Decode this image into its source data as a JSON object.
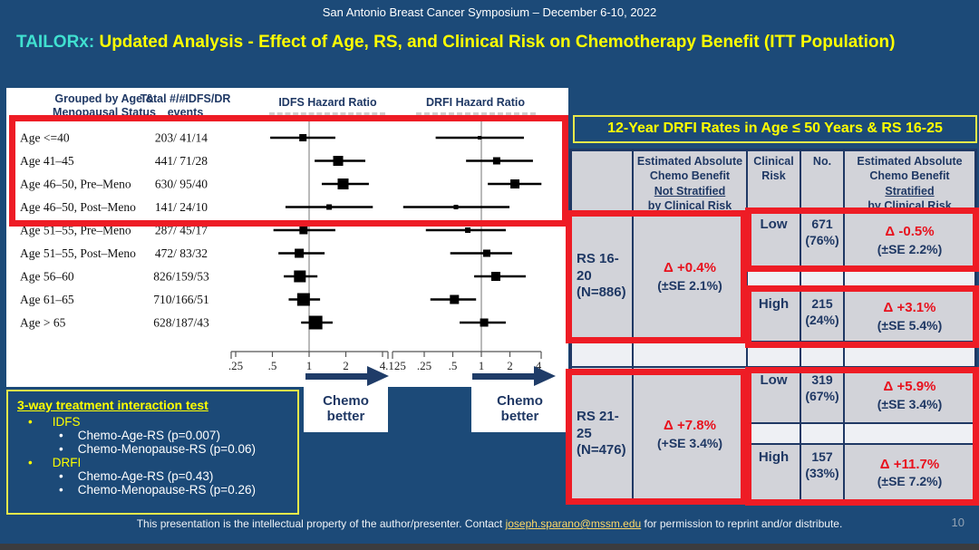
{
  "slide": {
    "conference": "San Antonio Breast Cancer Symposium – December 6-10, 2022",
    "title_prefix": "TAILORx:",
    "title_rest": " Updated Analysis - Effect of Age, RS, and Clinical Risk on Chemotherapy Benefit (ITT Population)",
    "chemo_better_line1": "Chemo",
    "chemo_better_line2": "better",
    "footer_pre": "This presentation is the intellectual property of the author/presenter. Contact ",
    "footer_email": "joseph.sparano@mssm.edu",
    "footer_post": " for permission to reprint and/or distribute.",
    "page_number": "10"
  },
  "forest_panel": {
    "col1_header_line1": "Grouped by Age &",
    "col1_header_line2": "Menopausal Status",
    "col2_header_line1": "Total #/#IDFS/DR",
    "col2_header_line2": "events",
    "idfs_header": "IDFS Hazard Ratio",
    "drfi_header": "DRFI  Hazard Ratio"
  },
  "chart_data": {
    "type": "forest",
    "scale": "log",
    "idfs_axis_ticks": [
      ".25",
      ".5",
      "1",
      "2",
      "4"
    ],
    "drfi_axis_ticks": [
      ".125",
      ".25",
      ".5",
      "1",
      "2",
      "4"
    ],
    "arrow_label": "Chemo better",
    "rows": [
      {
        "label": "Age <=40",
        "events": "203/ 41/14",
        "idfs": {
          "hr": 0.89,
          "lo": 0.48,
          "hi": 1.64,
          "size": 8
        },
        "drfi": {
          "hr": 0.96,
          "lo": 0.33,
          "hi": 2.81,
          "size": 4
        }
      },
      {
        "label": "Age 41–45",
        "events": "441/ 71/28",
        "idfs": {
          "hr": 1.73,
          "lo": 1.11,
          "hi": 2.89,
          "size": 11
        },
        "drfi": {
          "hr": 1.45,
          "lo": 0.69,
          "hi": 3.5,
          "size": 8
        }
      },
      {
        "label": "Age 46–50, Pre–Meno",
        "events": "630/ 95/40",
        "idfs": {
          "hr": 1.9,
          "lo": 1.27,
          "hi": 3.09,
          "size": 12
        },
        "drfi": {
          "hr": 2.26,
          "lo": 1.17,
          "hi": 4.3,
          "size": 10
        }
      },
      {
        "label": "Age 46–50, Post–Meno",
        "events": "141/ 24/10",
        "idfs": {
          "hr": 1.46,
          "lo": 0.64,
          "hi": 3.33,
          "size": 6
        },
        "drfi": {
          "hr": 0.54,
          "lo": 0.15,
          "hi": 1.98,
          "size": 5
        }
      },
      {
        "label": "Age 51–55, Pre–Meno",
        "events": "287/ 45/17",
        "idfs": {
          "hr": 0.9,
          "lo": 0.51,
          "hi": 1.64,
          "size": 9
        },
        "drfi": {
          "hr": 0.72,
          "lo": 0.26,
          "hi": 1.81,
          "size": 6
        }
      },
      {
        "label": "Age 51–55, Post–Meno",
        "events": "472/ 83/32",
        "idfs": {
          "hr": 0.83,
          "lo": 0.56,
          "hi": 1.34,
          "size": 10
        },
        "drfi": {
          "hr": 1.14,
          "lo": 0.47,
          "hi": 2.11,
          "size": 8
        }
      },
      {
        "label": "Age 56–60",
        "events": "826/159/53",
        "idfs": {
          "hr": 0.84,
          "lo": 0.62,
          "hi": 1.17,
          "size": 13
        },
        "drfi": {
          "hr": 1.42,
          "lo": 0.84,
          "hi": 2.94,
          "size": 10
        }
      },
      {
        "label": "Age 61–65",
        "events": "710/166/51",
        "idfs": {
          "hr": 0.9,
          "lo": 0.68,
          "hi": 1.23,
          "size": 14
        },
        "drfi": {
          "hr": 0.52,
          "lo": 0.29,
          "hi": 0.88,
          "size": 10
        }
      },
      {
        "label": "Age > 65",
        "events": "628/187/43",
        "idfs": {
          "hr": 1.13,
          "lo": 0.86,
          "hi": 1.56,
          "size": 15
        },
        "drfi": {
          "hr": 1.07,
          "lo": 0.59,
          "hi": 1.81,
          "size": 9
        }
      }
    ]
  },
  "interaction_box": {
    "title": "3-way treatment interaction test",
    "groups": [
      {
        "name": "IDFS",
        "items": [
          "Chemo-Age-RS (p=0.007)",
          "Chemo-Menopause-RS (p=0.06)"
        ]
      },
      {
        "name": "DRFI",
        "items": [
          "Chemo-Age-RS (p=0.43)",
          "Chemo-Menopause-RS (p=0.26)"
        ]
      }
    ]
  },
  "drfi_table": {
    "title": "12-Year DRFI Rates in Age ≤ 50 Years  & RS 16-25",
    "headers": {
      "col2_lines": [
        "Estimated Absolute",
        "Chemo Benefit",
        "Not Stratified",
        "by Clinical Risk"
      ],
      "col3": "Clinical Risk",
      "col4": "No.",
      "col5_lines": [
        "Estimated Absolute",
        "Chemo Benefit",
        "Stratified",
        "by Clinical Risk"
      ]
    },
    "groups": [
      {
        "rs_label": "RS 16-20",
        "rs_n": "(N=886)",
        "benefit_delta": "Δ +0.4%",
        "benefit_se": "(±SE 2.1%)",
        "rows": [
          {
            "risk": "Low",
            "n": "671",
            "pct": "(76%)",
            "delta": "Δ -0.5%",
            "se": "(±SE 2.2%)"
          },
          {
            "risk": "High",
            "n": "215",
            "pct": "(24%)",
            "delta": "Δ +3.1%",
            "se": "(±SE 5.4%)"
          }
        ]
      },
      {
        "rs_label": "RS 21-25",
        "rs_n": "(N=476)",
        "benefit_delta": "Δ +7.8%",
        "benefit_se": "(+SE 3.4%)",
        "rows": [
          {
            "risk": "Low",
            "n": "319",
            "pct": "(67%)",
            "delta": "Δ +5.9%",
            "se": "(±SE 3.4%)"
          },
          {
            "risk": "High",
            "n": "157",
            "pct": "(33%)",
            "delta": "Δ +11.7%",
            "se": "(±SE 7.2%)"
          }
        ]
      }
    ]
  },
  "colors": {
    "background": "#1c4a78",
    "highlight_red": "#ee1c25",
    "accent_yellow": "#ffff00",
    "accent_teal": "#40e0d0",
    "navy_text": "#1f3864",
    "table_cell_gray": "#d2d3d9",
    "table_separator": "#eef0f4",
    "delta_red": "#e8111d",
    "email_yellow": "#ffd966"
  }
}
